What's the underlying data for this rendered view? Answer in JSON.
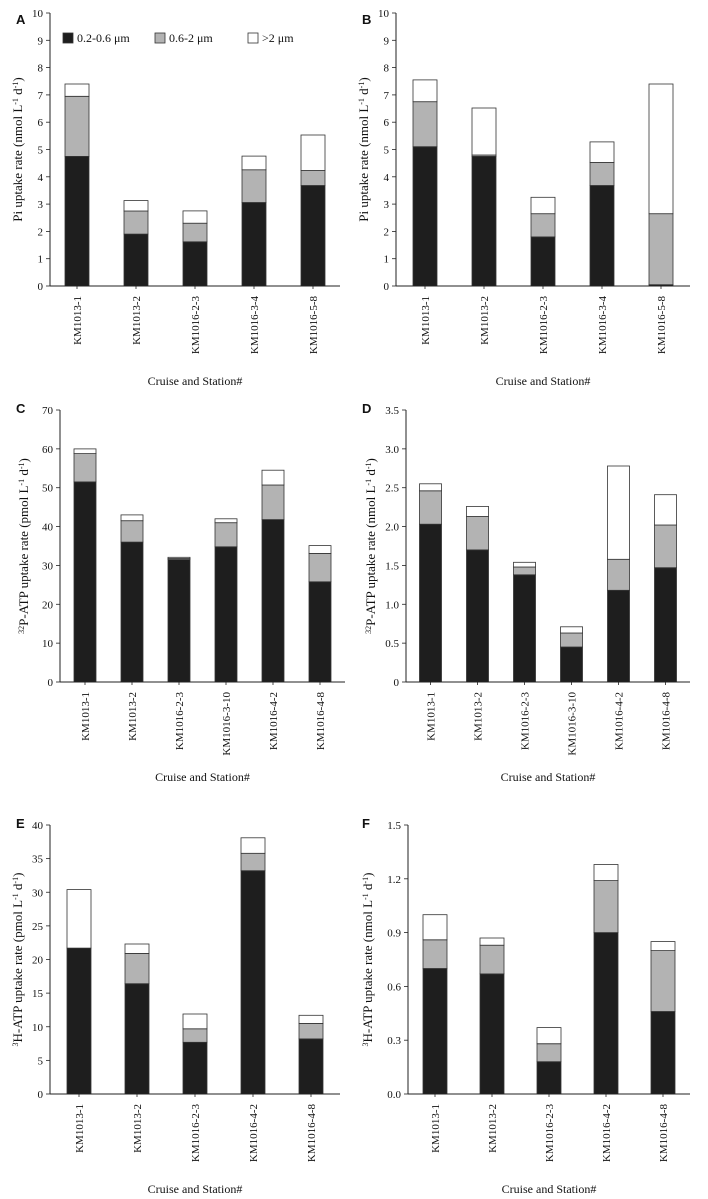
{
  "colors": {
    "small": "#1e1e1e",
    "medium": "#b3b3b3",
    "large": "#ffffff",
    "axis": "#222222"
  },
  "legend": [
    "0.2-0.6 μm",
    "0.6-2 μm",
    ">2 μm"
  ],
  "chart_data": [
    {
      "panel": "A",
      "type": "bar",
      "stacked": true,
      "ylabel": "Pi uptake rate (nmol L-1 d-1)",
      "ylabel_parts": [
        "Pi uptake rate (nmol L",
        "-1",
        " d",
        "-1",
        ")"
      ],
      "xlabel": "Cruise and Station#",
      "ylim": [
        0,
        10
      ],
      "yticks": [
        "0",
        "1",
        "2",
        "3",
        "4",
        "5",
        "6",
        "7",
        "8",
        "9",
        "10"
      ],
      "categories": [
        "KM1013-1",
        "KM1013-2",
        "KM1016-2-3",
        "KM1016-3-4",
        "KM1016-5-8"
      ],
      "series": [
        {
          "name": "0.2-0.6 μm",
          "values": [
            4.75,
            1.9,
            1.62,
            3.06,
            3.68
          ]
        },
        {
          "name": "0.6-2 μm",
          "values": [
            2.2,
            0.85,
            0.68,
            1.2,
            0.55
          ]
        },
        {
          "name": ">2 μm",
          "values": [
            0.45,
            0.38,
            0.45,
            0.5,
            1.3
          ]
        }
      ]
    },
    {
      "panel": "B",
      "type": "bar",
      "stacked": true,
      "ylabel": "Pi uptake rate (nmol L-1 d-1)",
      "ylabel_parts": [
        "Pi uptake rate (nmol L",
        "-1",
        " d",
        "-1",
        ")"
      ],
      "xlabel": "Cruise and Station#",
      "ylim": [
        0,
        10
      ],
      "yticks": [
        "0",
        "1",
        "2",
        "3",
        "4",
        "5",
        "6",
        "7",
        "8",
        "9",
        "10"
      ],
      "categories": [
        "KM1013-1",
        "KM1013-2",
        "KM1016-2-3",
        "KM1016-3-4",
        "KM1016-5-8"
      ],
      "series": [
        {
          "name": "0.2-0.6 μm",
          "values": [
            5.1,
            4.75,
            1.8,
            3.68,
            0.05
          ]
        },
        {
          "name": "0.6-2 μm",
          "values": [
            1.65,
            0.05,
            0.85,
            0.85,
            2.6
          ]
        },
        {
          "name": ">2 μm",
          "values": [
            0.8,
            1.72,
            0.6,
            0.75,
            4.75
          ]
        }
      ]
    },
    {
      "panel": "C",
      "type": "bar",
      "stacked": true,
      "ylabel": "32P-ATP uptake rate (pmol L-1 d-1)",
      "ylabel_parts": [
        "32",
        "P-ATP uptake rate (pmol L",
        "-1",
        " d",
        "-1",
        ")"
      ],
      "xlabel": "Cruise and Station#",
      "ylim": [
        0,
        70
      ],
      "yticks": [
        "0",
        "10",
        "20",
        "30",
        "40",
        "50",
        "60",
        "70"
      ],
      "categories": [
        "KM1013-1",
        "KM1013-2",
        "KM1016-2-3",
        "KM1016-3-10",
        "KM1016-4-2",
        "KM1016-4-8"
      ],
      "series": [
        {
          "name": "0.2-0.6 μm",
          "values": [
            51.5,
            36,
            31.5,
            34.8,
            41.8,
            25.8
          ]
        },
        {
          "name": "0.6-2 μm",
          "values": [
            7.3,
            5.5,
            0.3,
            6.2,
            8.9,
            7.3
          ]
        },
        {
          "name": ">2 μm",
          "values": [
            1.2,
            1.5,
            0.3,
            1.0,
            3.8,
            2.0
          ]
        }
      ]
    },
    {
      "panel": "D",
      "type": "bar",
      "stacked": true,
      "ylabel": "32P-ATP uptake rate (nmol L-1 d-1)",
      "ylabel_parts": [
        "32",
        "P-ATP uptake rate (nmol L",
        "-1",
        " d",
        "-1",
        ")"
      ],
      "xlabel": "Cruise and Station#",
      "ylim": [
        0,
        3.5
      ],
      "yticks": [
        "0",
        "0.5",
        "1.0",
        "1.5",
        "2.0",
        "2.5",
        "3.0",
        "3.5"
      ],
      "categories": [
        "KM1013-1",
        "KM1013-2",
        "KM1016-2-3",
        "KM1016-3-10",
        "KM1016-4-2",
        "KM1016-4-8"
      ],
      "series": [
        {
          "name": "0.2-0.6 μm",
          "values": [
            2.03,
            1.7,
            1.38,
            0.45,
            1.18,
            1.47
          ]
        },
        {
          "name": "0.6-2 μm",
          "values": [
            0.43,
            0.43,
            0.1,
            0.18,
            0.4,
            0.55
          ]
        },
        {
          "name": ">2 μm",
          "values": [
            0.09,
            0.13,
            0.06,
            0.08,
            1.2,
            0.39
          ]
        }
      ]
    },
    {
      "panel": "E",
      "type": "bar",
      "stacked": true,
      "ylabel": "3H-ATP uptake rate (pmol L-1 d-1)",
      "ylabel_parts": [
        "3",
        "H-ATP uptake rate (pmol L",
        "-1",
        " d",
        "-1",
        ")"
      ],
      "xlabel": "Cruise and Station#",
      "ylim": [
        0,
        40
      ],
      "yticks": [
        "0",
        "5",
        "10",
        "15",
        "20",
        "25",
        "30",
        "35",
        "40"
      ],
      "categories": [
        "KM1013-1",
        "KM1013-2",
        "KM1016-2-3",
        "KM1016-4-2",
        "KM1016-4-8"
      ],
      "series": [
        {
          "name": "0.2-0.6 μm",
          "values": [
            21.7,
            16.4,
            7.7,
            33.2,
            8.2
          ]
        },
        {
          "name": "0.6-2 μm",
          "values": [
            0,
            4.5,
            2.0,
            2.6,
            2.3
          ]
        },
        {
          "name": ">2 μm",
          "values": [
            8.7,
            1.4,
            2.2,
            2.3,
            1.2
          ]
        }
      ]
    },
    {
      "panel": "F",
      "type": "bar",
      "stacked": true,
      "ylabel": "3H-ATP uptake rate (nmol L-1 d-1)",
      "ylabel_parts": [
        "3",
        "H-ATP uptake rate (nmol L",
        "-1",
        " d",
        "-1",
        ")"
      ],
      "xlabel": "Cruise and Station#",
      "ylim": [
        0,
        1.5
      ],
      "yticks": [
        "0.0",
        "0.3",
        "0.6",
        "0.9",
        "1.2",
        "1.5"
      ],
      "categories": [
        "KM1013-1",
        "KM1013-2",
        "KM1016-2-3",
        "KM1016-4-2",
        "KM1016-4-8"
      ],
      "series": [
        {
          "name": "0.2-0.6 μm",
          "values": [
            0.7,
            0.67,
            0.18,
            0.9,
            0.46
          ]
        },
        {
          "name": "0.6-2 μm",
          "values": [
            0.16,
            0.16,
            0.1,
            0.29,
            0.34
          ]
        },
        {
          "name": ">2 μm",
          "values": [
            0.14,
            0.04,
            0.09,
            0.09,
            0.05
          ]
        }
      ]
    }
  ]
}
